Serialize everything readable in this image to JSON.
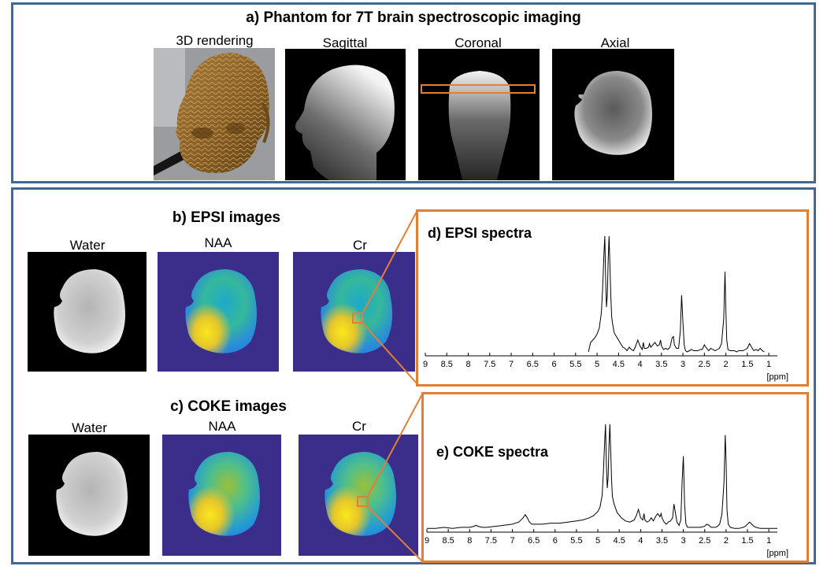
{
  "panel_a": {
    "title": "a) Phantom for 7T brain spectroscopic imaging",
    "views": [
      "3D rendering",
      "Sagittal",
      "Coronal",
      "Axial"
    ]
  },
  "panel_b": {
    "title": "b) EPSI images",
    "maps": [
      "Water",
      "NAA",
      "Cr"
    ]
  },
  "panel_c": {
    "title": "c) COKE images",
    "maps": [
      "Water",
      "NAA",
      "Cr"
    ]
  },
  "chart_data": [
    {
      "type": "line",
      "title": "d) EPSI spectra",
      "xlabel": "[ppm]",
      "x_ticks": [
        "9",
        "8.5",
        "8",
        "7.5",
        "7",
        "6.5",
        "6",
        "5.5",
        "5",
        "4.5",
        "4",
        "3.5",
        "3",
        "2.5",
        "2",
        "1.5",
        "1"
      ],
      "x_range": [
        9,
        0.8
      ],
      "x_reversed": true,
      "series": [
        {
          "name": "EPSI",
          "x": [
            5.2,
            5.15,
            5.1,
            5.05,
            5.0,
            4.95,
            4.9,
            4.87,
            4.84,
            4.82,
            4.8,
            4.78,
            4.76,
            4.74,
            4.72,
            4.7,
            4.68,
            4.66,
            4.64,
            4.6,
            4.55,
            4.5,
            4.45,
            4.4,
            4.35,
            4.3,
            4.25,
            4.2,
            4.15,
            4.1,
            4.05,
            4.0,
            3.95,
            3.92,
            3.9,
            3.85,
            3.8,
            3.78,
            3.75,
            3.7,
            3.65,
            3.6,
            3.55,
            3.52,
            3.5,
            3.45,
            3.4,
            3.35,
            3.3,
            3.25,
            3.22,
            3.2,
            3.15,
            3.1,
            3.06,
            3.03,
            3.0,
            2.97,
            2.94,
            2.9,
            2.85,
            2.8,
            2.75,
            2.7,
            2.65,
            2.6,
            2.55,
            2.5,
            2.45,
            2.4,
            2.35,
            2.3,
            2.25,
            2.2,
            2.15,
            2.1,
            2.05,
            2.02,
            2.0,
            1.98,
            1.95,
            1.9,
            1.85,
            1.8,
            1.75,
            1.7,
            1.65,
            1.6,
            1.55,
            1.5,
            1.45,
            1.4,
            1.35,
            1.3,
            1.25,
            1.2,
            1.15,
            1.1
          ],
          "y": [
            0.02,
            0.1,
            0.12,
            0.14,
            0.17,
            0.22,
            0.35,
            0.55,
            0.85,
            1.0,
            0.62,
            0.4,
            0.5,
            0.8,
            1.0,
            0.75,
            0.5,
            0.32,
            0.26,
            0.18,
            0.15,
            0.12,
            0.09,
            0.06,
            0.05,
            0.03,
            0.06,
            0.04,
            0.03,
            0.07,
            0.12,
            0.07,
            0.04,
            0.1,
            0.05,
            0.05,
            0.06,
            0.09,
            0.06,
            0.08,
            0.1,
            0.07,
            0.08,
            0.12,
            0.07,
            0.04,
            0.05,
            0.04,
            0.06,
            0.14,
            0.15,
            0.08,
            0.05,
            0.05,
            0.2,
            0.5,
            0.27,
            0.08,
            0.03,
            0.02,
            0.03,
            0.04,
            0.03,
            0.03,
            0.03,
            0.04,
            0.04,
            0.08,
            0.05,
            0.03,
            0.05,
            0.04,
            0.03,
            0.04,
            0.05,
            0.09,
            0.3,
            0.7,
            0.38,
            0.12,
            0.04,
            0.03,
            0.03,
            0.03,
            0.02,
            0.03,
            0.03,
            0.03,
            0.04,
            0.05,
            0.09,
            0.06,
            0.03,
            0.04,
            0.03,
            0.05,
            0.03,
            0.02
          ]
        }
      ]
    },
    {
      "type": "line",
      "title": "e) COKE spectra",
      "xlabel": "[ppm]",
      "x_ticks": [
        "9",
        "8.5",
        "8",
        "7.5",
        "7",
        "6.5",
        "6",
        "5.5",
        "5",
        "4.5",
        "4",
        "3.5",
        "3",
        "2.5",
        "2",
        "1.5",
        "1"
      ],
      "x_range": [
        9,
        0.8
      ],
      "x_reversed": true,
      "series": [
        {
          "name": "COKE",
          "x": [
            9.0,
            8.8,
            8.6,
            8.4,
            8.2,
            8.0,
            7.9,
            7.85,
            7.8,
            7.7,
            7.6,
            7.4,
            7.2,
            7.0,
            6.85,
            6.75,
            6.7,
            6.65,
            6.6,
            6.55,
            6.45,
            6.3,
            6.1,
            5.9,
            5.7,
            5.5,
            5.35,
            5.2,
            5.1,
            5.0,
            4.95,
            4.9,
            4.87,
            4.84,
            4.82,
            4.8,
            4.78,
            4.76,
            4.74,
            4.72,
            4.7,
            4.68,
            4.66,
            4.62,
            4.55,
            4.45,
            4.35,
            4.25,
            4.15,
            4.1,
            4.05,
            4.0,
            3.95,
            3.92,
            3.9,
            3.85,
            3.8,
            3.75,
            3.7,
            3.65,
            3.6,
            3.55,
            3.52,
            3.5,
            3.45,
            3.4,
            3.35,
            3.3,
            3.25,
            3.22,
            3.2,
            3.15,
            3.1,
            3.06,
            3.03,
            3.0,
            2.97,
            2.94,
            2.9,
            2.8,
            2.7,
            2.6,
            2.5,
            2.45,
            2.4,
            2.35,
            2.3,
            2.25,
            2.2,
            2.15,
            2.1,
            2.05,
            2.02,
            2.0,
            1.98,
            1.95,
            1.9,
            1.8,
            1.7,
            1.6,
            1.55,
            1.5,
            1.45,
            1.4,
            1.35,
            1.3,
            1.2,
            1.1,
            1.0,
            0.9,
            0.8
          ],
          "y": [
            0.02,
            0.02,
            0.03,
            0.02,
            0.03,
            0.03,
            0.04,
            0.05,
            0.04,
            0.03,
            0.03,
            0.04,
            0.05,
            0.06,
            0.08,
            0.12,
            0.15,
            0.12,
            0.08,
            0.06,
            0.06,
            0.06,
            0.07,
            0.07,
            0.08,
            0.09,
            0.1,
            0.12,
            0.14,
            0.18,
            0.22,
            0.33,
            0.55,
            0.85,
            1.0,
            0.62,
            0.4,
            0.5,
            0.8,
            1.0,
            0.75,
            0.5,
            0.32,
            0.25,
            0.17,
            0.12,
            0.09,
            0.08,
            0.1,
            0.14,
            0.2,
            0.12,
            0.1,
            0.16,
            0.1,
            0.08,
            0.09,
            0.12,
            0.09,
            0.13,
            0.16,
            0.13,
            0.16,
            0.12,
            0.08,
            0.06,
            0.08,
            0.09,
            0.12,
            0.25,
            0.2,
            0.08,
            0.05,
            0.1,
            0.45,
            0.7,
            0.25,
            0.06,
            0.03,
            0.03,
            0.03,
            0.03,
            0.04,
            0.06,
            0.05,
            0.03,
            0.03,
            0.03,
            0.04,
            0.06,
            0.15,
            0.45,
            0.9,
            0.65,
            0.2,
            0.06,
            0.03,
            0.02,
            0.02,
            0.03,
            0.04,
            0.06,
            0.08,
            0.06,
            0.04,
            0.03,
            0.02,
            0.02,
            0.02,
            0.02,
            0.02
          ]
        }
      ]
    }
  ]
}
